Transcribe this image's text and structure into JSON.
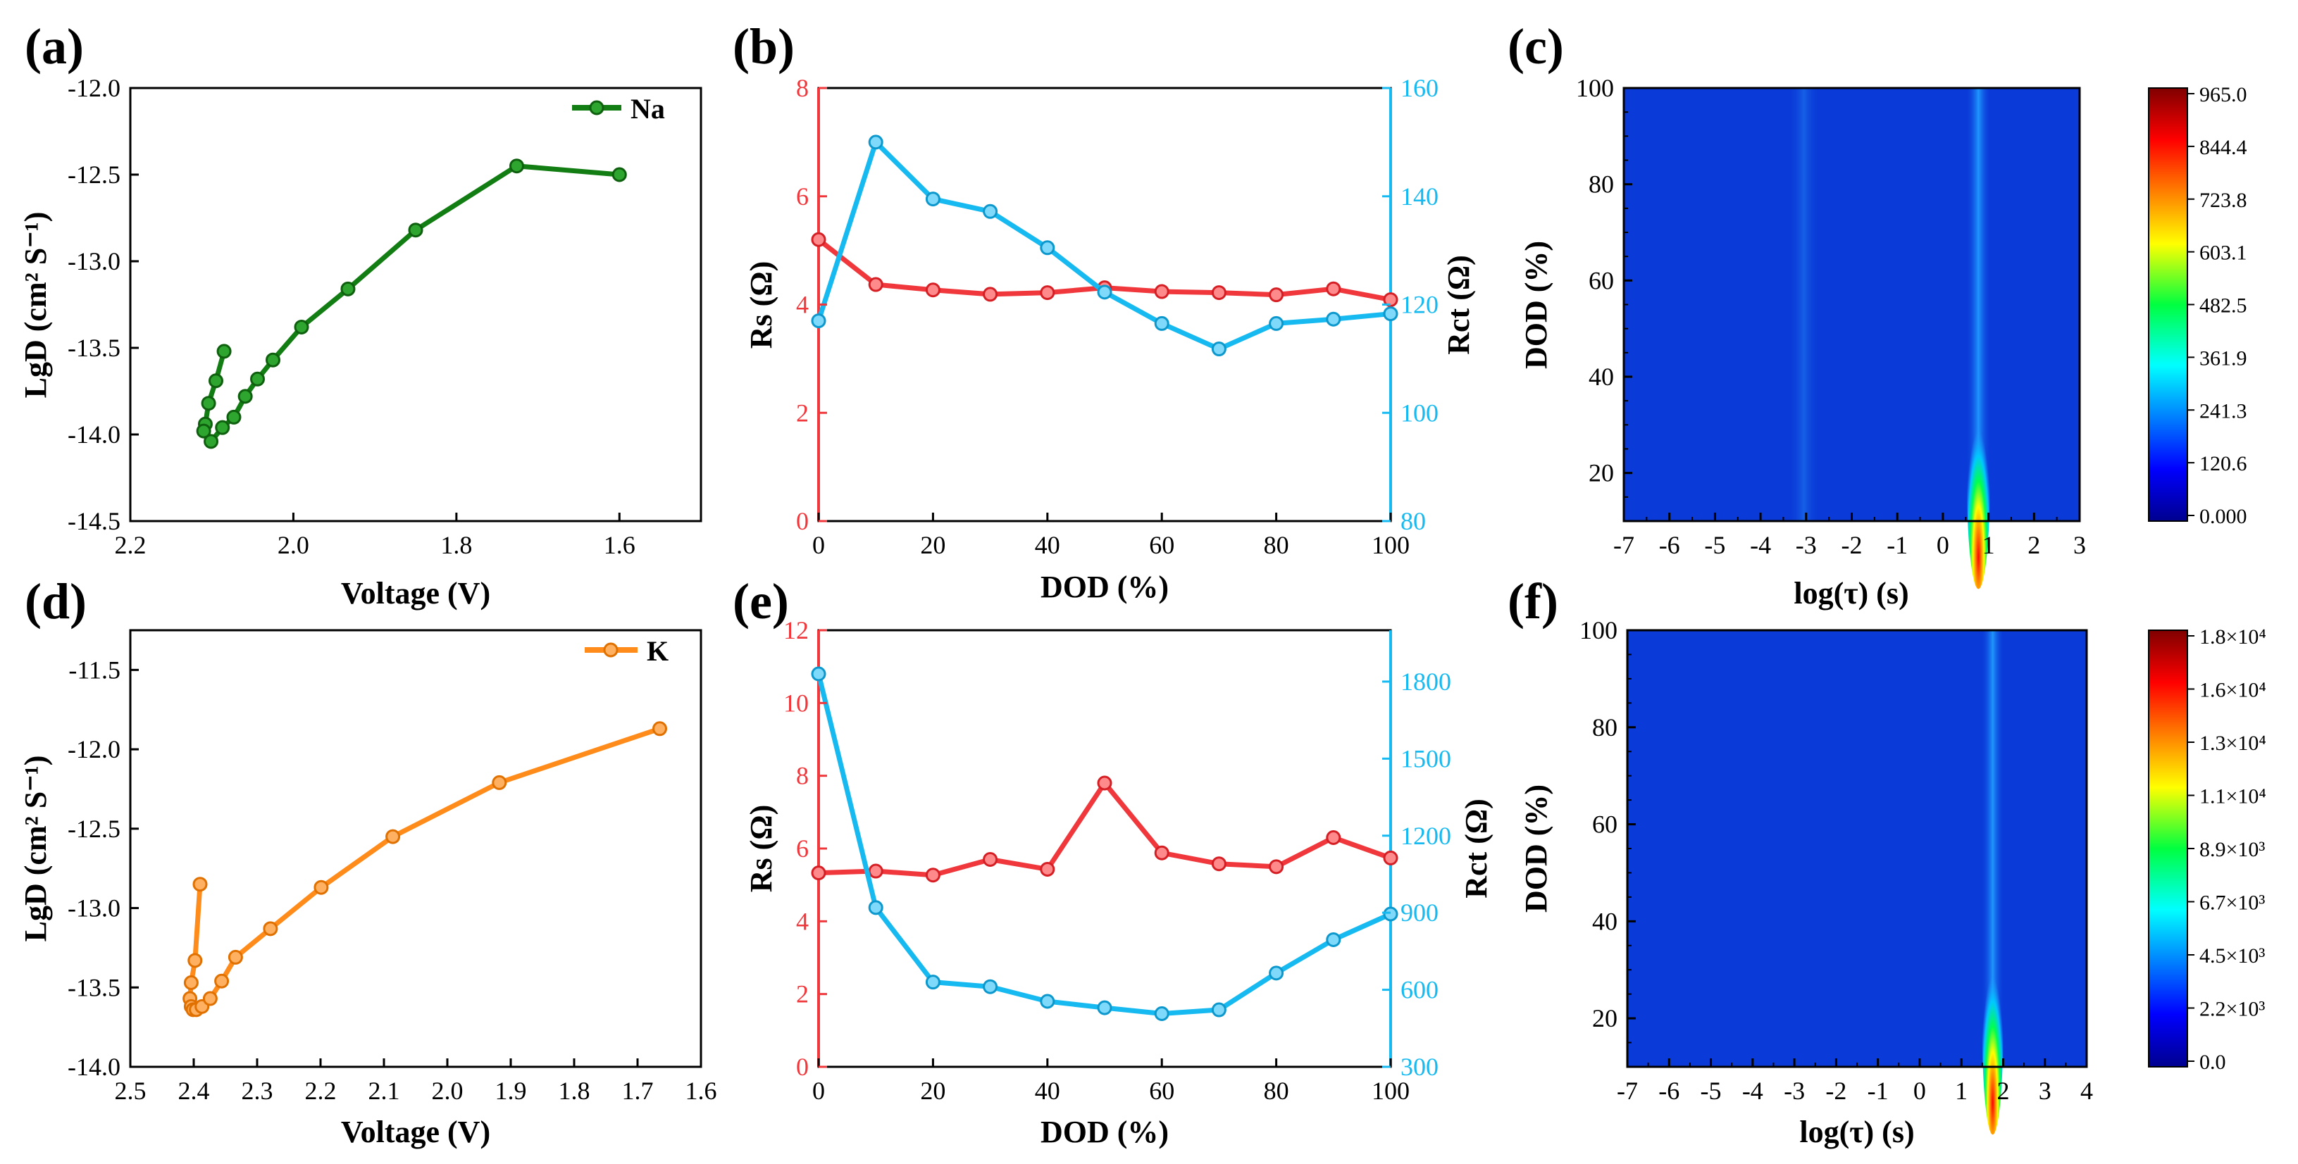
{
  "colors": {
    "na": "#127d12",
    "k": "#ff8c1a",
    "rs": "#f0383c",
    "rct": "#17baf0",
    "axis": "#000000",
    "heat_bg": "#0a3ad8"
  },
  "chart_data": [
    {
      "id": "a",
      "panel_label": "(a)",
      "type": "line",
      "title": "",
      "xlabel": "Voltage (V)",
      "ylabel": "LgD (cm² S⁻¹)",
      "xlim": [
        2.2,
        1.5
      ],
      "ylim": [
        -14.5,
        -12.0
      ],
      "xticks": [
        "2.2",
        "2.0",
        "1.8",
        "1.6"
      ],
      "xtick_values": [
        2.2,
        2.0,
        1.8,
        1.6
      ],
      "yticks": [
        "-14.5",
        "-14.0",
        "-13.5",
        "-13.0",
        "-12.5",
        "-12.0"
      ],
      "ytick_values": [
        -14.5,
        -14.0,
        -13.5,
        -13.0,
        -12.5,
        -12.0
      ],
      "legend": "Na",
      "legend_position": "top-right",
      "series": [
        {
          "name": "Na",
          "x": [
            2.085,
            2.095,
            2.104,
            2.108,
            2.11,
            2.101,
            2.087,
            2.073,
            2.059,
            2.044,
            2.025,
            1.99,
            1.933,
            1.85,
            1.726,
            1.6
          ],
          "y": [
            -13.52,
            -13.69,
            -13.82,
            -13.94,
            -13.98,
            -14.04,
            -13.96,
            -13.9,
            -13.78,
            -13.68,
            -13.57,
            -13.38,
            -13.16,
            -12.82,
            -12.45,
            -12.5
          ]
        }
      ]
    },
    {
      "id": "b",
      "panel_label": "(b)",
      "type": "line",
      "title": "",
      "xlabel": "DOD (%)",
      "ylabel_left": "Rs (Ω)",
      "ylabel_right": "Rct (Ω)",
      "xlim": [
        0,
        100
      ],
      "ylim_left": [
        0,
        8
      ],
      "ylim_right": [
        80,
        160
      ],
      "xticks": [
        "0",
        "20",
        "40",
        "60",
        "80",
        "100"
      ],
      "xtick_values": [
        0,
        20,
        40,
        60,
        80,
        100
      ],
      "yticks_left": [
        "0",
        "2",
        "4",
        "6",
        "8"
      ],
      "ytick_values_left": [
        0,
        2,
        4,
        6,
        8
      ],
      "yticks_right": [
        "80",
        "100",
        "120",
        "140",
        "160"
      ],
      "ytick_values_right": [
        80,
        100,
        120,
        140,
        160
      ],
      "series": [
        {
          "name": "Rs",
          "axis": "left",
          "x": [
            0,
            10,
            20,
            30,
            40,
            50,
            60,
            70,
            80,
            90,
            100
          ],
          "values": [
            5.2,
            4.37,
            4.27,
            4.19,
            4.22,
            4.31,
            4.24,
            4.22,
            4.18,
            4.29,
            4.09
          ]
        },
        {
          "name": "Rct",
          "axis": "right",
          "x": [
            0,
            10,
            20,
            30,
            40,
            50,
            60,
            70,
            80,
            90,
            100
          ],
          "values": [
            117,
            150,
            139.5,
            137.2,
            130.5,
            122.3,
            116.5,
            111.8,
            116.5,
            117.3,
            118.3
          ]
        }
      ]
    },
    {
      "id": "c",
      "panel_label": "(c)",
      "type": "heatmap",
      "title": "",
      "xlabel": "log(τ) (s)",
      "ylabel": "DOD (%)",
      "xlim": [
        -7,
        3
      ],
      "ylim": [
        10,
        100
      ],
      "xticks": [
        "-7",
        "-6",
        "-5",
        "-4",
        "-3",
        "-2",
        "-1",
        "0",
        "1",
        "2",
        "3"
      ],
      "xtick_values": [
        -7,
        -6,
        -5,
        -4,
        -3,
        -2,
        -1,
        0,
        1,
        2,
        3
      ],
      "yticks": [
        "20",
        "40",
        "60",
        "80",
        "100"
      ],
      "ytick_values": [
        20,
        40,
        60,
        80,
        100
      ],
      "peaks": [
        {
          "log_tau": 0.78,
          "dod_peak": 12,
          "intensity": 965,
          "width": 0.2
        },
        {
          "log_tau": -3.05,
          "dod_peak": 55,
          "intensity": 130,
          "width": 0.25
        }
      ],
      "colorbar": {
        "min": 0,
        "max": 965,
        "ticks": [
          "965.0",
          "844.4",
          "723.8",
          "603.1",
          "482.5",
          "361.9",
          "241.3",
          "120.6",
          "0.000"
        ]
      }
    },
    {
      "id": "d",
      "panel_label": "(d)",
      "type": "line",
      "title": "",
      "xlabel": "Voltage (V)",
      "ylabel": "LgD (cm² S⁻¹)",
      "xlim": [
        2.5,
        1.6
      ],
      "ylim": [
        -14.0,
        -11.25
      ],
      "xticks": [
        "2.5",
        "2.4",
        "2.3",
        "2.2",
        "2.1",
        "2.0",
        "1.9",
        "1.8",
        "1.7",
        "1.6"
      ],
      "xtick_values": [
        2.5,
        2.4,
        2.3,
        2.2,
        2.1,
        2.0,
        1.9,
        1.8,
        1.7,
        1.6
      ],
      "yticks": [
        "-14.0",
        "-13.5",
        "-13.0",
        "-12.5",
        "-12.0",
        "-11.5"
      ],
      "ytick_values": [
        -14.0,
        -13.5,
        -13.0,
        -12.5,
        -12.0,
        -11.5
      ],
      "legend": "K",
      "legend_position": "top-right",
      "series": [
        {
          "name": "K",
          "x": [
            2.39,
            2.398,
            2.404,
            2.406,
            2.404,
            2.401,
            2.396,
            2.387,
            2.374,
            2.356,
            2.334,
            2.279,
            2.199,
            2.086,
            1.918,
            1.665
          ],
          "y": [
            -12.85,
            -13.33,
            -13.47,
            -13.57,
            -13.62,
            -13.64,
            -13.64,
            -13.62,
            -13.57,
            -13.46,
            -13.31,
            -13.13,
            -12.87,
            -12.55,
            -12.21,
            -11.87
          ]
        }
      ]
    },
    {
      "id": "e",
      "panel_label": "(e)",
      "type": "line",
      "title": "",
      "xlabel": "DOD (%)",
      "ylabel_left": "Rs (Ω)",
      "ylabel_right": "Rct (Ω)",
      "xlim": [
        0,
        100
      ],
      "ylim_left": [
        0,
        12
      ],
      "ylim_right": [
        300,
        2000
      ],
      "xticks": [
        "0",
        "20",
        "40",
        "60",
        "80",
        "100"
      ],
      "xtick_values": [
        0,
        20,
        40,
        60,
        80,
        100
      ],
      "yticks_left": [
        "0",
        "2",
        "4",
        "6",
        "8",
        "10",
        "12"
      ],
      "ytick_values_left": [
        0,
        2,
        4,
        6,
        8,
        10,
        12
      ],
      "yticks_right": [
        "300",
        "600",
        "900",
        "1200",
        "1500",
        "1800"
      ],
      "ytick_values_right": [
        300,
        600,
        900,
        1200,
        1500,
        1800
      ],
      "series": [
        {
          "name": "Rs",
          "axis": "left",
          "x": [
            0,
            10,
            20,
            30,
            40,
            50,
            60,
            70,
            80,
            90,
            100
          ],
          "values": [
            5.33,
            5.38,
            5.27,
            5.7,
            5.43,
            7.8,
            5.88,
            5.58,
            5.5,
            6.3,
            5.74
          ]
        },
        {
          "name": "Rct",
          "axis": "right",
          "x": [
            0,
            10,
            20,
            30,
            40,
            50,
            60,
            70,
            80,
            90,
            100
          ],
          "values": [
            1830,
            920,
            630,
            612,
            555,
            530,
            507,
            522,
            665,
            795,
            895
          ]
        }
      ]
    },
    {
      "id": "f",
      "panel_label": "(f)",
      "type": "heatmap",
      "title": "",
      "xlabel": "log(τ) (s)",
      "ylabel": "DOD (%)",
      "xlim": [
        -7,
        4
      ],
      "ylim": [
        10,
        100
      ],
      "xticks": [
        "-7",
        "-6",
        "-5",
        "-4",
        "-3",
        "-2",
        "-1",
        "0",
        "1",
        "2",
        "3",
        "4"
      ],
      "xtick_values": [
        -7,
        -6,
        -5,
        -4,
        -3,
        -2,
        -1,
        0,
        1,
        2,
        3,
        4
      ],
      "yticks": [
        "20",
        "40",
        "60",
        "80",
        "100"
      ],
      "ytick_values": [
        20,
        40,
        60,
        80,
        100
      ],
      "peaks": [
        {
          "log_tau": 1.75,
          "dod_peak": 12,
          "intensity": 18000,
          "width": 0.2
        }
      ],
      "colorbar": {
        "min": 0,
        "max": 18000,
        "ticks": [
          "1.8×10⁴",
          "1.6×10⁴",
          "1.3×10⁴",
          "1.1×10⁴",
          "8.9×10³",
          "6.7×10³",
          "4.5×10³",
          "2.2×10³",
          "0.0"
        ]
      }
    }
  ]
}
